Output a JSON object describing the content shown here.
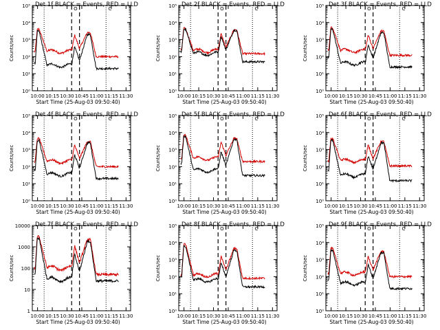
{
  "chart_data": {
    "type": "line",
    "yscale": "log",
    "x_tick_labels": [
      "10:00",
      "10:15",
      "10:30",
      "10:45",
      "11:00",
      "11:15",
      "11:30"
    ],
    "xlabel": "Start Time (25-Aug-03 09:50:40)",
    "ylabel": "Counts/sec",
    "marker_labels": [
      "O",
      "C"
    ],
    "colors": {
      "events": "#000000",
      "lld": "#d40000"
    },
    "panels": [
      {
        "title": "Det 1f BLACK = Events, RED = LLD",
        "ylim": [
          1,
          100000
        ],
        "y_tick_labels": [
          "10⁰",
          "10¹",
          "10²",
          "10³",
          "10⁴",
          "10⁵"
        ],
        "events": {
          "base": 30,
          "peak1": 3000,
          "dip": 60,
          "peak2": 2000,
          "tail": 20,
          "start": 40
        },
        "lld": {
          "base": 200,
          "peak1": 4000,
          "dip": 300,
          "peak2": 2600,
          "tail": 100,
          "start": 200
        }
      },
      {
        "title": "Det 2f BLACK = Events, RED = LLD",
        "ylim": [
          1,
          100000
        ],
        "y_tick_labels": [
          "10⁰",
          "10¹",
          "10²",
          "10³",
          "10⁴",
          "10⁵"
        ],
        "events": {
          "base": 150,
          "peak1": 4000,
          "dip": 250,
          "peak2": 3500,
          "tail": 50,
          "start": 200
        },
        "lld": {
          "base": 220,
          "peak1": 4500,
          "dip": 350,
          "peak2": 3800,
          "tail": 150,
          "start": 250
        }
      },
      {
        "title": "Det 3f BLACK = Events, RED = LLD",
        "ylim": [
          1,
          100000
        ],
        "y_tick_labels": [
          "10⁰",
          "10¹",
          "10²",
          "10³",
          "10⁴",
          "10⁵"
        ],
        "events": {
          "base": 40,
          "peak1": 4000,
          "dip": 80,
          "peak2": 2500,
          "tail": 25,
          "start": 80
        },
        "lld": {
          "base": 220,
          "peak1": 5000,
          "dip": 300,
          "peak2": 3200,
          "tail": 120,
          "start": 250
        }
      },
      {
        "title": "Det 4f BLACK = Events, RED = LLD",
        "ylim": [
          1,
          100000
        ],
        "y_tick_labels": [
          "10⁰",
          "10¹",
          "10²",
          "10³",
          "10⁴",
          "10⁵"
        ],
        "events": {
          "base": 35,
          "peak1": 3500,
          "dip": 80,
          "peak2": 2500,
          "tail": 20,
          "start": 60
        },
        "lld": {
          "base": 200,
          "peak1": 4500,
          "dip": 300,
          "peak2": 3000,
          "tail": 100,
          "start": 200
        }
      },
      {
        "title": "Det 5f BLACK = Events, RED = LLD",
        "ylim": [
          1,
          100000
        ],
        "y_tick_labels": [
          "10⁰",
          "10¹",
          "10²",
          "10³",
          "10⁴",
          "10⁵"
        ],
        "events": {
          "base": 60,
          "peak1": 6000,
          "dip": 120,
          "peak2": 4000,
          "tail": 30,
          "start": 150
        },
        "lld": {
          "base": 300,
          "peak1": 7000,
          "dip": 450,
          "peak2": 4500,
          "tail": 200,
          "start": 300
        }
      },
      {
        "title": "Det 6f BLACK = Events, RED = LLD",
        "ylim": [
          1,
          100000
        ],
        "y_tick_labels": [
          "10⁰",
          "10¹",
          "10²",
          "10³",
          "10⁴",
          "10⁵"
        ],
        "events": {
          "base": 30,
          "peak1": 3500,
          "dip": 70,
          "peak2": 2500,
          "tail": 15,
          "start": 60
        },
        "lld": {
          "base": 220,
          "peak1": 4500,
          "dip": 300,
          "peak2": 3000,
          "tail": 110,
          "start": 220
        }
      },
      {
        "title": "Det 7f BLACK = Events, RED = LLD",
        "ylim": [
          1,
          10000
        ],
        "y_tick_labels": [
          "1",
          "10",
          "100",
          "1000",
          "10000"
        ],
        "events": {
          "base": 30,
          "peak1": 2500,
          "dip": 70,
          "peak2": 1800,
          "tail": 25,
          "start": 50
        },
        "lld": {
          "base": 100,
          "peak1": 3000,
          "dip": 180,
          "peak2": 2200,
          "tail": 50,
          "start": 100
        }
      },
      {
        "title": "Det 8f BLACK = Events, RED = LLD",
        "ylim": [
          1,
          100000
        ],
        "y_tick_labels": [
          "10⁰",
          "10¹",
          "10²",
          "10³",
          "10⁴",
          "10⁵"
        ],
        "events": {
          "base": 60,
          "peak1": 6000,
          "dip": 100,
          "peak2": 3500,
          "tail": 25,
          "start": 100
        },
        "lld": {
          "base": 120,
          "peak1": 8000,
          "dip": 250,
          "peak2": 4500,
          "tail": 80,
          "start": 120
        }
      },
      {
        "title": "Det 9f BLACK = Events, RED = LLD",
        "ylim": [
          1,
          100000
        ],
        "y_tick_labels": [
          "10⁰",
          "10¹",
          "10²",
          "10³",
          "10⁴",
          "10⁵"
        ],
        "events": {
          "base": 40,
          "peak1": 3500,
          "dip": 80,
          "peak2": 2500,
          "tail": 20,
          "start": 60
        },
        "lld": {
          "base": 150,
          "peak1": 4500,
          "dip": 250,
          "peak2": 3000,
          "tail": 100,
          "start": 150
        }
      }
    ]
  }
}
